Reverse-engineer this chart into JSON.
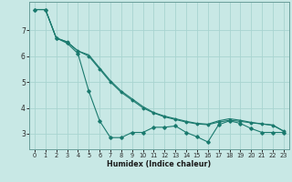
{
  "xlabel": "Humidex (Indice chaleur)",
  "background_color": "#c8e8e5",
  "grid_color": "#a8d4d0",
  "line_color": "#1a7a6e",
  "spine_color": "#6a9e9a",
  "xlim": [
    -0.5,
    23.5
  ],
  "ylim": [
    2.4,
    8.1
  ],
  "yticks": [
    3,
    4,
    5,
    6,
    7
  ],
  "xticks": [
    0,
    1,
    2,
    3,
    4,
    5,
    6,
    7,
    8,
    9,
    10,
    11,
    12,
    13,
    14,
    15,
    16,
    17,
    18,
    19,
    20,
    21,
    22,
    23
  ],
  "series1": [
    7.8,
    7.8,
    6.7,
    6.5,
    6.1,
    4.65,
    3.5,
    2.85,
    2.85,
    3.05,
    3.05,
    3.25,
    3.25,
    3.3,
    3.05,
    2.88,
    2.68,
    3.35,
    3.5,
    3.4,
    3.2,
    3.05,
    3.05,
    3.05
  ],
  "series2": [
    7.8,
    7.8,
    6.7,
    6.55,
    6.2,
    6.0,
    5.5,
    5.0,
    4.6,
    4.3,
    4.0,
    3.8,
    3.65,
    3.55,
    3.45,
    3.38,
    3.35,
    3.45,
    3.52,
    3.48,
    3.42,
    3.38,
    3.32,
    3.1
  ],
  "series3": [
    7.8,
    7.8,
    6.7,
    6.55,
    6.2,
    6.05,
    5.55,
    5.05,
    4.65,
    4.35,
    4.05,
    3.82,
    3.68,
    3.58,
    3.48,
    3.4,
    3.37,
    3.5,
    3.58,
    3.52,
    3.44,
    3.38,
    3.34,
    3.1
  ]
}
